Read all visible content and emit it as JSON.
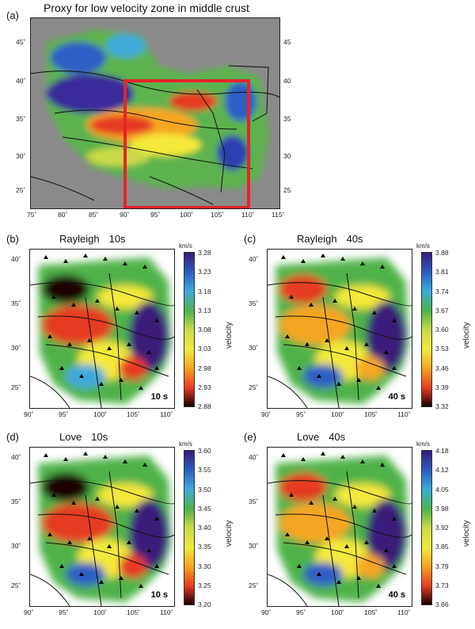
{
  "panel_a": {
    "letter": "(a)",
    "title": "Proxy for low velocity zone in middle crust",
    "lon_ticks": [
      "75˚",
      "80˚",
      "85˚",
      "90˚",
      "95˚",
      "100˚",
      "105˚",
      "110˚",
      "115˚"
    ],
    "lat_ticks_left": [
      "45˚",
      "40˚",
      "35˚",
      "30˚",
      "25˚"
    ],
    "lat_ticks_right": [
      "45",
      "40",
      "35",
      "30",
      "25"
    ]
  },
  "panels": [
    {
      "letter": "(b)",
      "wave": "Rayleigh",
      "period": "10s",
      "period_label": "10 s",
      "unit": "km/s",
      "axis_label": "velocity",
      "colorbar": [
        "3.28",
        "3.23",
        "3.18",
        "3.13",
        "3.08",
        "3.03",
        "2.98",
        "2.93",
        "2.88"
      ],
      "lat_ticks": [
        "40˚",
        "35˚",
        "30˚",
        "25˚"
      ],
      "lon_ticks": [
        "90˚",
        "95˚",
        "100˚",
        "105˚",
        "110˚"
      ]
    },
    {
      "letter": "(c)",
      "wave": "Rayleigh",
      "period": "40s",
      "period_label": "40 s",
      "unit": "km/s",
      "axis_label": "velocity",
      "colorbar": [
        "3.88",
        "3.81",
        "3.74",
        "3.67",
        "3.60",
        "3.53",
        "3.46",
        "3.39",
        "3.32"
      ],
      "lat_ticks": [
        "40˚",
        "35˚",
        "30˚",
        "25˚"
      ],
      "lon_ticks": [
        "90˚",
        "95˚",
        "100˚",
        "105˚",
        "110˚"
      ]
    },
    {
      "letter": "(d)",
      "wave": "Love",
      "period": "10s",
      "period_label": "10 s",
      "unit": "km/s",
      "axis_label": "velocity",
      "colorbar": [
        "3.60",
        "3.55",
        "3.50",
        "3.45",
        "3.40",
        "3.35",
        "3.30",
        "3.25",
        "3.20"
      ],
      "lat_ticks": [
        "40˚",
        "35˚",
        "30˚",
        "25˚"
      ],
      "lon_ticks": [
        "90˚",
        "95˚",
        "100˚",
        "105˚",
        "110˚"
      ]
    },
    {
      "letter": "(e)",
      "wave": "Love",
      "period": "40s",
      "period_label": "40 s",
      "unit": "km/s",
      "axis_label": "velocity",
      "colorbar": [
        "4.18",
        "4.12",
        "4.05",
        "3.98",
        "3.92",
        "3.85",
        "3.79",
        "3.73",
        "3.66"
      ],
      "lat_ticks": [
        "40˚",
        "35˚",
        "30˚",
        "25˚"
      ],
      "lon_ticks": [
        "90˚",
        "95˚",
        "100˚",
        "105˚",
        "110˚"
      ]
    }
  ],
  "colors": {
    "highlight_box": "#e8232a",
    "ocean_gray": "#8a8a8a",
    "colorbar_stops": [
      "#3a1a7a",
      "#2d5fc4",
      "#3fa9d9",
      "#4fb24a",
      "#c9d94a",
      "#f3e93a",
      "#f5a623",
      "#e53a24",
      "#1a0000"
    ]
  }
}
